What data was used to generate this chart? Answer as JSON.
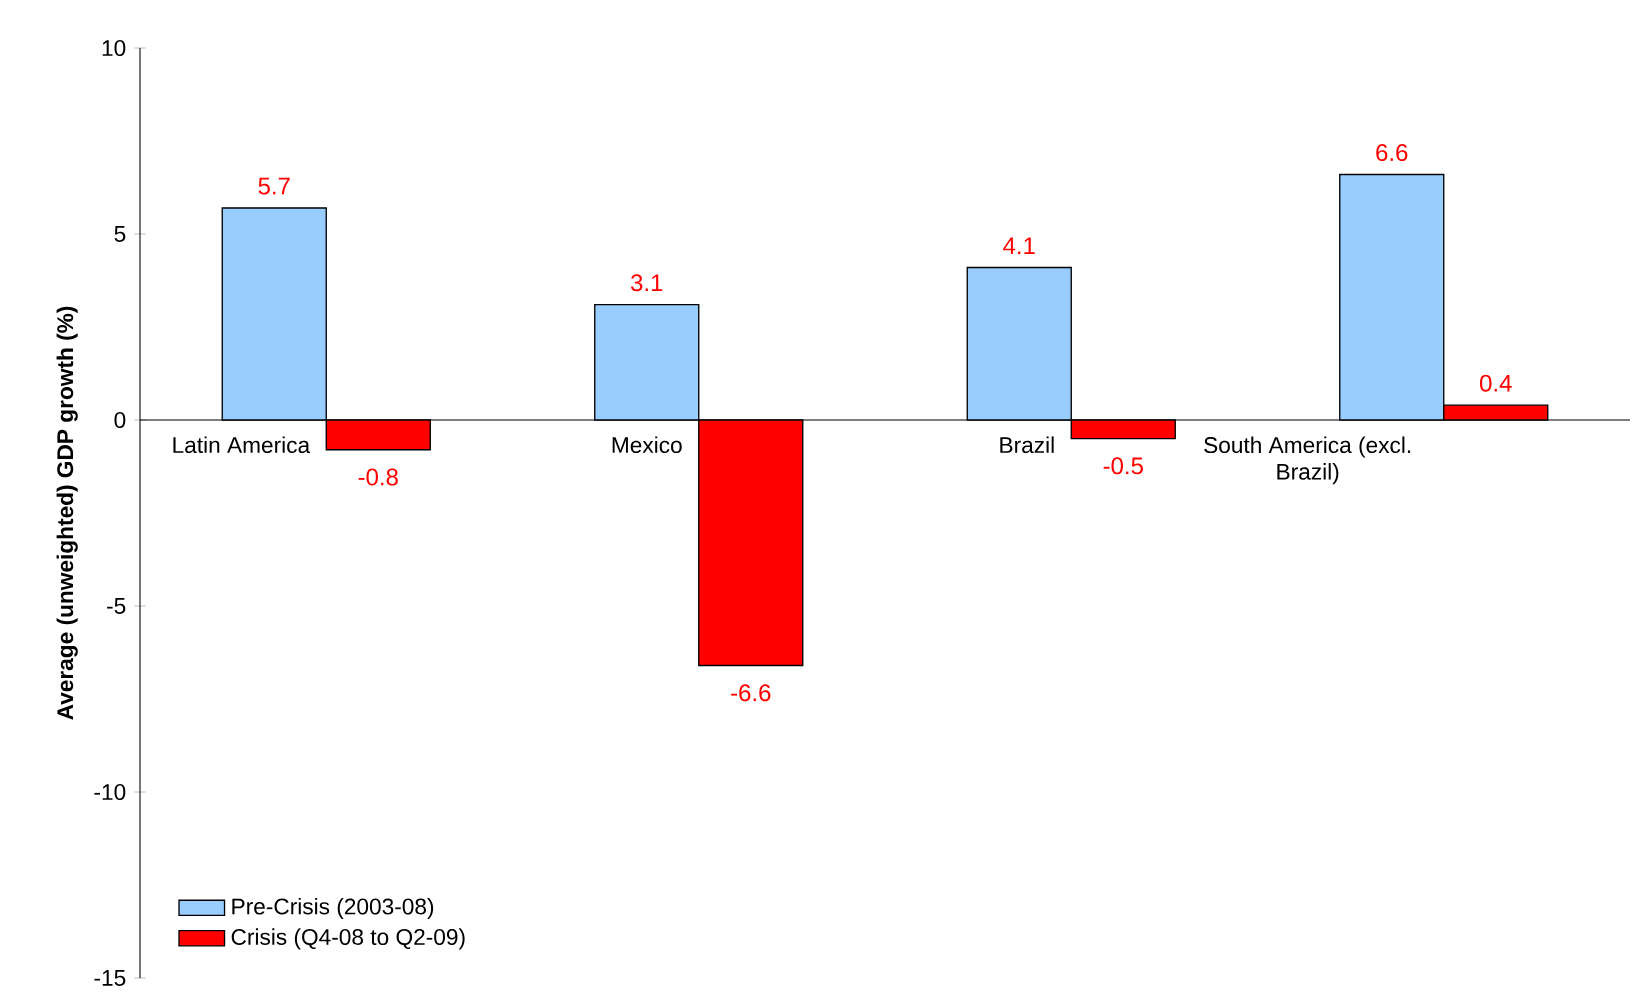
{
  "chart_data": {
    "type": "bar",
    "ylabel": "Average (unweighted) GDP growth (%)",
    "categories": [
      "Latin America",
      "Mexico",
      "Brazil",
      "South America (excl. Brazil)"
    ],
    "series": [
      {
        "name": "Pre-Crisis (2003-08)",
        "color": "#99ccff",
        "values": [
          5.7,
          3.1,
          4.1,
          6.6
        ]
      },
      {
        "name": "Crisis (Q4-08 to Q2-09)",
        "color": "#ff0000",
        "values": [
          -0.8,
          -6.6,
          -0.5,
          0.4
        ]
      }
    ],
    "ylim": [
      -15,
      10
    ],
    "yticks": [
      -15,
      -10,
      -5,
      0,
      5,
      10
    ],
    "data_labels": true,
    "legend": "bottom left",
    "grid": false
  }
}
